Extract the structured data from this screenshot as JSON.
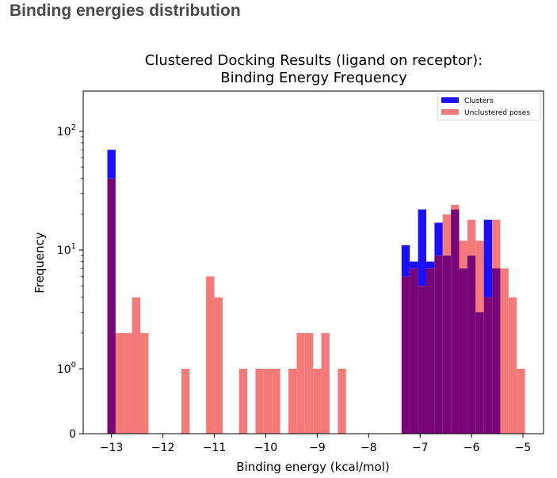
{
  "page": {
    "heading": "Binding energies distribution"
  },
  "chart_data": {
    "type": "bar",
    "title_line1": "Clustered Docking Results (ligand on receptor):",
    "title_line2": "Binding Energy Frequency",
    "xlabel": "Binding energy (kcal/mol)",
    "ylabel": "Frequency",
    "xlim": [
      -13.55,
      -4.6
    ],
    "yscale": "log",
    "xticks": [
      {
        "value": -13,
        "label": "−13"
      },
      {
        "value": -12,
        "label": "−12"
      },
      {
        "value": -11,
        "label": "−11"
      },
      {
        "value": -10,
        "label": "−10"
      },
      {
        "value": -9,
        "label": "−9"
      },
      {
        "value": -8,
        "label": "−8"
      },
      {
        "value": -7,
        "label": "−7"
      },
      {
        "value": -6,
        "label": "−6"
      },
      {
        "value": -5,
        "label": "−5"
      }
    ],
    "yticks": [
      {
        "value": 0,
        "base": "0",
        "exp": ""
      },
      {
        "value": 1,
        "base": "10",
        "exp": "0"
      },
      {
        "value": 10,
        "base": "10",
        "exp": "1"
      },
      {
        "value": 100,
        "base": "10",
        "exp": "2"
      }
    ],
    "legend": {
      "location": "upper right",
      "entries": [
        {
          "name": "Clusters",
          "color": "#1a10ff"
        },
        {
          "name": "Unclustered poses",
          "color": "#f47a79"
        }
      ]
    },
    "overlap_color": "#780578",
    "bin_width": 0.16,
    "series": [
      {
        "name": "Clusters",
        "color": "#1a10ff",
        "bins": [
          {
            "x": -13.0,
            "value": 70
          },
          {
            "x": -7.28,
            "value": 11
          },
          {
            "x": -7.12,
            "value": 8
          },
          {
            "x": -6.96,
            "value": 22
          },
          {
            "x": -6.8,
            "value": 8
          },
          {
            "x": -6.64,
            "value": 17
          },
          {
            "x": -6.48,
            "value": 9
          },
          {
            "x": -6.32,
            "value": 22
          },
          {
            "x": -6.16,
            "value": 7
          },
          {
            "x": -6.0,
            "value": 9
          },
          {
            "x": -5.84,
            "value": 3
          },
          {
            "x": -5.68,
            "value": 18
          },
          {
            "x": -5.52,
            "value": 7
          }
        ]
      },
      {
        "name": "Unclustered poses",
        "color": "#f47a79",
        "bins": [
          {
            "x": -13.0,
            "value": 40
          },
          {
            "x": -12.84,
            "value": 2
          },
          {
            "x": -12.68,
            "value": 2
          },
          {
            "x": -12.52,
            "value": 4
          },
          {
            "x": -12.36,
            "value": 2
          },
          {
            "x": -11.56,
            "value": 1
          },
          {
            "x": -11.08,
            "value": 6
          },
          {
            "x": -10.92,
            "value": 4
          },
          {
            "x": -10.44,
            "value": 1
          },
          {
            "x": -10.12,
            "value": 1
          },
          {
            "x": -9.96,
            "value": 1
          },
          {
            "x": -9.8,
            "value": 1
          },
          {
            "x": -9.48,
            "value": 1
          },
          {
            "x": -9.32,
            "value": 2
          },
          {
            "x": -9.16,
            "value": 2
          },
          {
            "x": -9.0,
            "value": 1
          },
          {
            "x": -8.84,
            "value": 2
          },
          {
            "x": -8.52,
            "value": 1
          },
          {
            "x": -7.28,
            "value": 6
          },
          {
            "x": -7.12,
            "value": 7
          },
          {
            "x": -6.96,
            "value": 5
          },
          {
            "x": -6.8,
            "value": 7
          },
          {
            "x": -6.64,
            "value": 9
          },
          {
            "x": -6.48,
            "value": 20
          },
          {
            "x": -6.32,
            "value": 24
          },
          {
            "x": -6.16,
            "value": 12
          },
          {
            "x": -6.0,
            "value": 18
          },
          {
            "x": -5.84,
            "value": 12
          },
          {
            "x": -5.68,
            "value": 4
          },
          {
            "x": -5.52,
            "value": 18
          },
          {
            "x": -5.36,
            "value": 7
          },
          {
            "x": -5.2,
            "value": 4
          },
          {
            "x": -5.04,
            "value": 1
          }
        ]
      }
    ]
  }
}
